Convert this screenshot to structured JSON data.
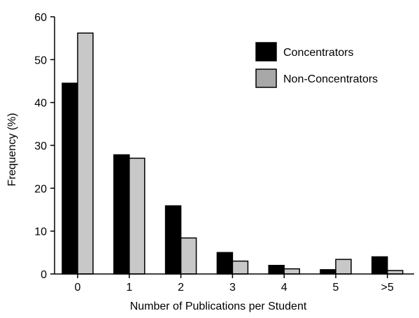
{
  "chart_data": {
    "type": "bar",
    "title": "",
    "xlabel": "Number of Publications per Student",
    "ylabel": "Frequency (%)",
    "ylim": [
      0,
      60
    ],
    "yticks": [
      0,
      10,
      20,
      30,
      40,
      50,
      60
    ],
    "categories": [
      "0",
      "1",
      "2",
      "3",
      "4",
      "5",
      ">5"
    ],
    "series": [
      {
        "name": "Concentrators",
        "color": "#000000",
        "values": [
          44.5,
          27.8,
          15.9,
          5.0,
          2.0,
          1.0,
          4.0
        ]
      },
      {
        "name": "Non-Concentrators",
        "color": "#c8c8c8",
        "values": [
          56.2,
          27.0,
          8.4,
          3.0,
          1.2,
          3.4,
          0.8
        ]
      }
    ],
    "grid": false,
    "legend_position": "top-right",
    "legend_swatch_colors": [
      "#000000",
      "#a8a8a8"
    ]
  }
}
